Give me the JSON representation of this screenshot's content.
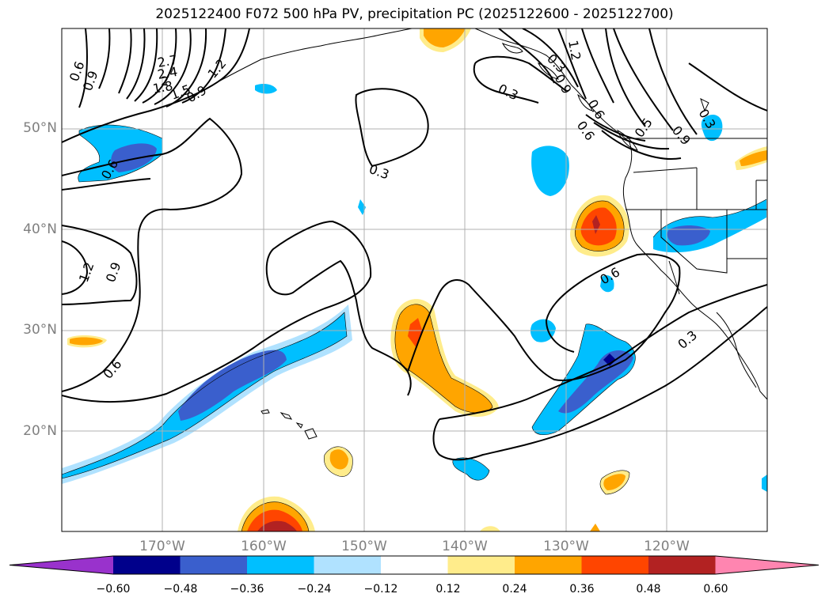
{
  "title": "2025122400 F072 500 hPa PV, precipitation PC (2025122600 - 2025122700)",
  "lat_labels": [
    "50°N",
    "40°N",
    "30°N",
    "20°N"
  ],
  "lon_labels": [
    "170°W",
    "160°W",
    "150°W",
    "140°W",
    "130°W",
    "120°W"
  ],
  "contour_labels": [
    "0.6",
    "0.9",
    "2.7",
    "2.4",
    "2",
    "1.8",
    "1.5",
    "1.2",
    "0.9",
    "0.3",
    "1.2",
    "0.3",
    "0.6",
    "0.9",
    "0.5",
    "0.9",
    "0.3",
    "0.6",
    "0.3",
    "1.2",
    "0.9",
    "0.6",
    "0.6",
    "0.3",
    "0.6"
  ],
  "colorbar": {
    "ticks": [
      "−0.60",
      "−0.48",
      "−0.36",
      "−0.24",
      "−0.12",
      "0.12",
      "0.24",
      "0.36",
      "0.48",
      "0.60"
    ],
    "colors": [
      "#9932cc",
      "#00008b",
      "#3a5fcd",
      "#00bfff",
      "#b0e2ff",
      "#ffffff",
      "#ffec8b",
      "#ffa500",
      "#ff4500",
      "#b22222",
      "#ff85b0"
    ]
  }
}
